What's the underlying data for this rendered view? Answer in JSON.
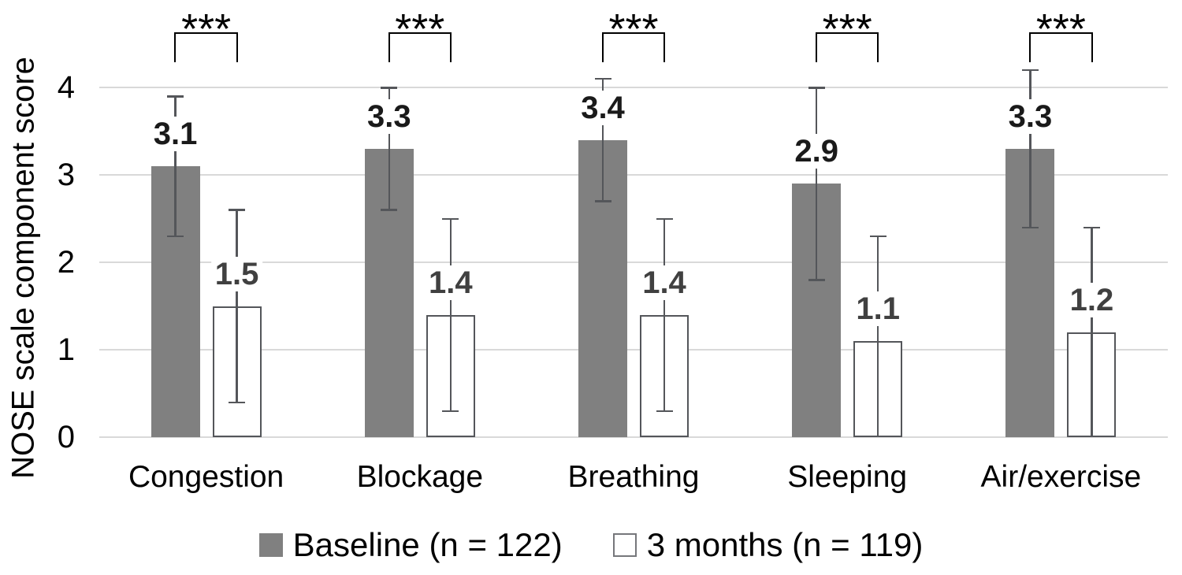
{
  "chart_data": {
    "type": "bar",
    "title": "",
    "ylabel": "NOSE scale component score",
    "categories": [
      "Congestion",
      "Blockage",
      "Breathing",
      "Sleeping",
      "Air/exercise"
    ],
    "series": [
      {
        "name": "Baseline (n = 122)",
        "values": [
          3.1,
          3.3,
          3.4,
          2.9,
          3.3
        ],
        "error_high": [
          3.9,
          4.0,
          4.1,
          4.0,
          4.2
        ],
        "error_low": [
          2.3,
          2.6,
          2.7,
          1.8,
          2.4
        ],
        "fill": "#808080",
        "border": "none",
        "label_color": "#1a1a1a"
      },
      {
        "name": "3 months (n = 119)",
        "values": [
          1.5,
          1.4,
          1.4,
          1.1,
          1.2
        ],
        "error_high": [
          2.6,
          2.5,
          2.5,
          2.3,
          2.4
        ],
        "error_low": [
          0.4,
          0.3,
          0.3,
          -0.1,
          0.0
        ],
        "fill": "#ffffff",
        "border": "#54565a",
        "label_color": "#404040"
      }
    ],
    "significance_labels": [
      "***",
      "***",
      "***",
      "***",
      "***"
    ],
    "yticks": [
      0,
      1,
      2,
      3,
      4
    ],
    "ylim": [
      0,
      4
    ],
    "grid": true,
    "legend_position": "bottom",
    "colors": {
      "background": "#ffffff",
      "gridline": "#d9d9d9",
      "error_bar": "#54565a",
      "bracket": "#000000",
      "axis_text": "#000000",
      "legend_swatch_border": "#76777b"
    }
  }
}
